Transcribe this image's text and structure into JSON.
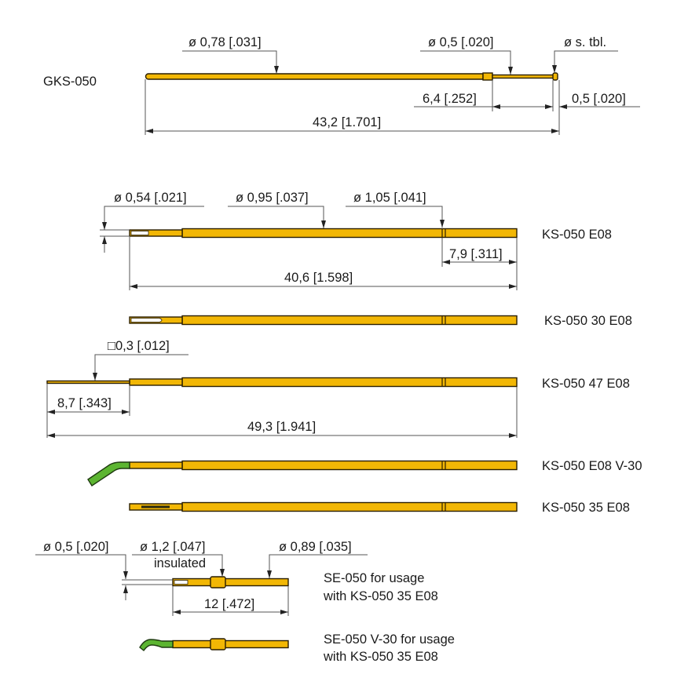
{
  "colors": {
    "probe_body": "#f2b705",
    "insulated_tip": "#5cb531",
    "outline": "#2a1e00"
  },
  "gks050": {
    "label": "GKS-050",
    "dia_body": "ø 0,78 [.031]",
    "dia_tip": "ø 0,5 [.020]",
    "dia_head": "ø s. tbl.",
    "len_tip": "6,4 [.252]",
    "len_head": "0,5 [.020]",
    "len_total": "43,2 [1.701]"
  },
  "ks050": {
    "dia_plunger": "ø 0,54 [.021]",
    "dia_body": "ø 0,95 [.037]",
    "dia_ring": "ø 1,05 [.041]",
    "len_ring": "7,9 [.311]",
    "len_total": "40,6 [1.598]",
    "wire_square": "□0,3 [.012]",
    "len_wire": "8,7 [.343]",
    "len_total_47": "49,3 [1.941]",
    "labels": [
      "KS-050 E08",
      "KS-050 30 E08",
      "KS-050 47 E08",
      "KS-050 E08 V-30",
      "KS-050 35 E08"
    ]
  },
  "se050": {
    "dia_tip": "ø 0,5 [.020]",
    "dia_collar": "ø 1,2 [.047]",
    "collar_note": "insulated",
    "dia_body": "ø 0,89 [.035]",
    "len_total": "12 [.472]",
    "label_1": "SE-050 for usage",
    "label_2": "with KS-050 35 E08",
    "v30_label_1": "SE-050 V-30 for usage",
    "v30_label_2": "with KS-050 35 E08"
  }
}
